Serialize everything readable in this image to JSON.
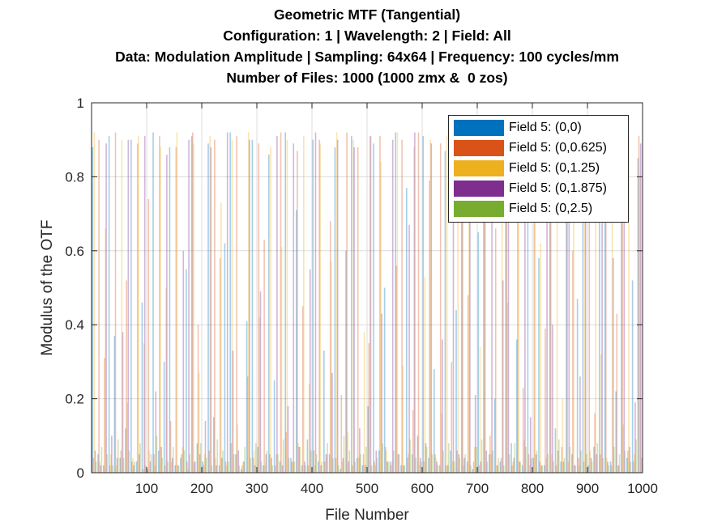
{
  "chart_data": {
    "type": "bar",
    "title": [
      "Geometric MTF (Tangential)",
      "Configuration: 1 | Wavelength: 2 | Field: All",
      "Data: Modulation Amplitude | Sampling: 64x64 | Frequency: 100 cycles/mm",
      "Number of Files: 1000 (1000 zmx &  0 zos)"
    ],
    "xlabel": "File Number",
    "ylabel": "Modulus of the OTF",
    "xlim": [
      0,
      1000
    ],
    "ylim": [
      0,
      1
    ],
    "xticks": [
      "100",
      "200",
      "300",
      "400",
      "500",
      "600",
      "700",
      "800",
      "900",
      "1000"
    ],
    "yticks": [
      "0",
      "0.2",
      "0.4",
      "0.6",
      "0.8",
      "1"
    ],
    "grid": true,
    "legend_position": "top-right",
    "x_step": 10,
    "series": [
      {
        "name": "Field 5: (0,0)",
        "color": "#0072BD",
        "values": [
          0.88,
          0.05,
          0.02,
          0.91,
          0.37,
          0.04,
          0.12,
          0.9,
          0.03,
          0.46,
          0.01,
          0.92,
          0.06,
          0.3,
          0.88,
          0.02,
          0.04,
          0.55,
          0.91,
          0.08,
          0.03,
          0.89,
          0.15,
          0.02,
          0.62,
          0.92,
          0.05,
          0.01,
          0.41,
          0.9,
          0.07,
          0.02,
          0.86,
          0.25,
          0.03,
          0.92,
          0.04,
          0.71,
          0.02,
          0.09,
          0.9,
          0.03,
          0.33,
          0.05,
          0.88,
          0.01,
          0.6,
          0.91,
          0.04,
          0.02,
          0.18,
          0.89,
          0.06,
          0.5,
          0.03,
          0.92,
          0.02,
          0.77,
          0.05,
          0.1,
          0.91,
          0.04,
          0.28,
          0.02,
          0.87,
          0.06,
          0.44,
          0.9,
          0.03,
          0.01,
          0.65,
          0.92,
          0.05,
          0.2,
          0.03,
          0.88,
          0.08,
          0.36,
          0.02,
          0.91,
          0.04,
          0.58,
          0.02,
          0.9,
          0.12,
          0.03,
          0.83,
          0.05,
          0.47,
          0.92,
          0.02,
          0.07,
          0.69,
          0.89,
          0.03,
          0.22,
          0.9,
          0.04,
          0.52,
          0.85
        ]
      },
      {
        "name": "Field 5: (0,0.625)",
        "color": "#D95319",
        "values": [
          0.04,
          0.9,
          0.31,
          0.02,
          0.92,
          0.06,
          0.52,
          0.03,
          0.89,
          0.01,
          0.74,
          0.05,
          0.91,
          0.02,
          0.14,
          0.88,
          0.05,
          0.03,
          0.92,
          0.4,
          0.02,
          0.06,
          0.9,
          0.58,
          0.03,
          0.08,
          0.91,
          0.02,
          0.26,
          0.04,
          0.89,
          0.63,
          0.05,
          0.02,
          0.92,
          0.11,
          0.03,
          0.87,
          0.45,
          0.02,
          0.06,
          0.9,
          0.03,
          0.68,
          0.04,
          0.21,
          0.92,
          0.02,
          0.88,
          0.05,
          0.35,
          0.03,
          0.91,
          0.07,
          0.02,
          0.56,
          0.9,
          0.04,
          0.17,
          0.92,
          0.03,
          0.79,
          0.05,
          0.89,
          0.02,
          0.3,
          0.06,
          0.91,
          0.48,
          0.03,
          0.02,
          0.9,
          0.1,
          0.66,
          0.04,
          0.92,
          0.02,
          0.88,
          0.23,
          0.05,
          0.86,
          0.03,
          0.39,
          0.91,
          0.02,
          0.07,
          0.9,
          0.6,
          0.04,
          0.03,
          0.89,
          0.16,
          0.05,
          0.92,
          0.02,
          0.43,
          0.88,
          0.06,
          0.03,
          0.91
        ]
      },
      {
        "name": "Field 5: (0,1.25)",
        "color": "#EDB120",
        "values": [
          0.92,
          0.03,
          0.66,
          0.05,
          0.02,
          0.9,
          0.19,
          0.04,
          0.91,
          0.35,
          0.06,
          0.02,
          0.88,
          0.5,
          0.03,
          0.92,
          0.07,
          0.01,
          0.89,
          0.27,
          0.05,
          0.91,
          0.04,
          0.73,
          0.02,
          0.9,
          0.13,
          0.03,
          0.92,
          0.06,
          0.42,
          0.02,
          0.88,
          0.05,
          0.61,
          0.9,
          0.03,
          0.08,
          0.91,
          0.24,
          0.02,
          0.89,
          0.05,
          0.57,
          0.92,
          0.03,
          0.11,
          0.9,
          0.04,
          0.38,
          0.91,
          0.02,
          0.84,
          0.06,
          0.03,
          0.92,
          0.29,
          0.05,
          0.88,
          0.02,
          0.53,
          0.9,
          0.04,
          0.16,
          0.91,
          0.03,
          0.7,
          0.02,
          0.89,
          0.07,
          0.34,
          0.92,
          0.05,
          0.02,
          0.9,
          0.46,
          0.03,
          0.88,
          0.09,
          0.02,
          0.91,
          0.62,
          0.04,
          0.05,
          0.9,
          0.2,
          0.03,
          0.92,
          0.02,
          0.75,
          0.06,
          0.89,
          0.32,
          0.04,
          0.91,
          0.02,
          0.13,
          0.9,
          0.05,
          0.8
        ]
      },
      {
        "name": "Field 5: (0,1.875)",
        "color": "#7E2F8E",
        "values": [
          0.06,
          0.02,
          0.89,
          0.1,
          0.04,
          0.38,
          0.9,
          0.02,
          0.05,
          0.91,
          0.03,
          0.22,
          0.07,
          0.86,
          0.04,
          0.02,
          0.6,
          0.9,
          0.03,
          0.05,
          0.14,
          0.88,
          0.02,
          0.04,
          0.92,
          0.33,
          0.06,
          0.03,
          0.9,
          0.02,
          0.49,
          0.05,
          0.04,
          0.91,
          0.02,
          0.18,
          0.89,
          0.07,
          0.03,
          0.55,
          0.92,
          0.02,
          0.05,
          0.27,
          0.9,
          0.04,
          0.03,
          0.88,
          0.12,
          0.02,
          0.91,
          0.06,
          0.43,
          0.03,
          0.9,
          0.05,
          0.02,
          0.67,
          0.92,
          0.04,
          0.08,
          0.89,
          0.03,
          0.36,
          0.02,
          0.91,
          0.05,
          0.04,
          0.9,
          0.21,
          0.03,
          0.06,
          0.88,
          0.02,
          0.52,
          0.92,
          0.04,
          0.03,
          0.89,
          0.15,
          0.05,
          0.02,
          0.9,
          0.4,
          0.06,
          0.03,
          0.91,
          0.02,
          0.26,
          0.88,
          0.04,
          0.05,
          0.92,
          0.03,
          0.58,
          0.02,
          0.9,
          0.07,
          0.19,
          0.89
        ]
      },
      {
        "name": "Field 5: (0,2.5)",
        "color": "#77AC30",
        "values": [
          0.03,
          0.07,
          0.05,
          0.02,
          0.09,
          0.04,
          0.06,
          0.03,
          0.08,
          0.02,
          0.05,
          0.1,
          0.04,
          0.03,
          0.07,
          0.02,
          0.06,
          0.05,
          0.03,
          0.08,
          0.04,
          0.02,
          0.09,
          0.06,
          0.03,
          0.05,
          0.02,
          0.07,
          0.04,
          0.08,
          0.03,
          0.06,
          0.02,
          0.05,
          0.09,
          0.04,
          0.03,
          0.07,
          0.02,
          0.06,
          0.05,
          0.03,
          0.08,
          0.04,
          0.02,
          0.1,
          0.06,
          0.03,
          0.05,
          0.07,
          0.02,
          0.04,
          0.08,
          0.03,
          0.06,
          0.05,
          0.02,
          0.09,
          0.04,
          0.03,
          0.07,
          0.05,
          0.02,
          0.06,
          0.08,
          0.03,
          0.04,
          0.05,
          0.02,
          0.07,
          0.09,
          0.03,
          0.06,
          0.04,
          0.02,
          0.05,
          0.08,
          0.03,
          0.07,
          0.04,
          0.06,
          0.02,
          0.05,
          0.03,
          0.09,
          0.04,
          0.07,
          0.02,
          0.06,
          0.05,
          0.03,
          0.08,
          0.04,
          0.02,
          0.07,
          0.05,
          0.06,
          0.03,
          0.09,
          0.04
        ]
      }
    ]
  }
}
